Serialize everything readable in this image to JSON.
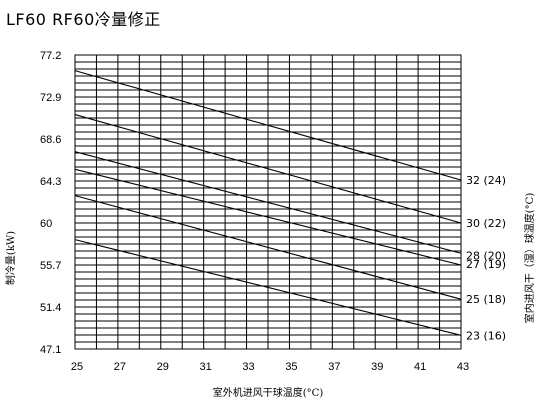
{
  "chart_data": {
    "type": "line",
    "title": "LF60 RF60冷量修正",
    "xlabel": "室外机进风干球温度(°C)",
    "ylabel": "制冷量(kW)",
    "right_label": "室内进风干（湿）球温度(°C)",
    "xlim": [
      25,
      43
    ],
    "ylim": [
      47.1,
      77.2
    ],
    "x_ticks": [
      "25",
      "27",
      "29",
      "31",
      "33",
      "35",
      "37",
      "39",
      "41",
      "43"
    ],
    "y_ticks": [
      "77.2",
      "72.9",
      "68.6",
      "64.3",
      "60",
      "55.7",
      "51.4",
      "47.1"
    ],
    "grid": true,
    "series": [
      {
        "name": "32 (24)",
        "x": [
          25,
          43
        ],
        "y": [
          75.6,
          64.4
        ]
      },
      {
        "name": "30 (22)",
        "x": [
          25,
          43
        ],
        "y": [
          71.1,
          60.0
        ]
      },
      {
        "name": "28 (20)",
        "x": [
          25,
          43
        ],
        "y": [
          67.3,
          56.9
        ]
      },
      {
        "name": "27 (19)",
        "x": [
          25,
          43
        ],
        "y": [
          65.5,
          55.7
        ]
      },
      {
        "name": "25 (18)",
        "x": [
          25,
          43
        ],
        "y": [
          62.8,
          52.2
        ]
      },
      {
        "name": "23 (16)",
        "x": [
          25,
          43
        ],
        "y": [
          58.3,
          48.5
        ]
      }
    ]
  }
}
